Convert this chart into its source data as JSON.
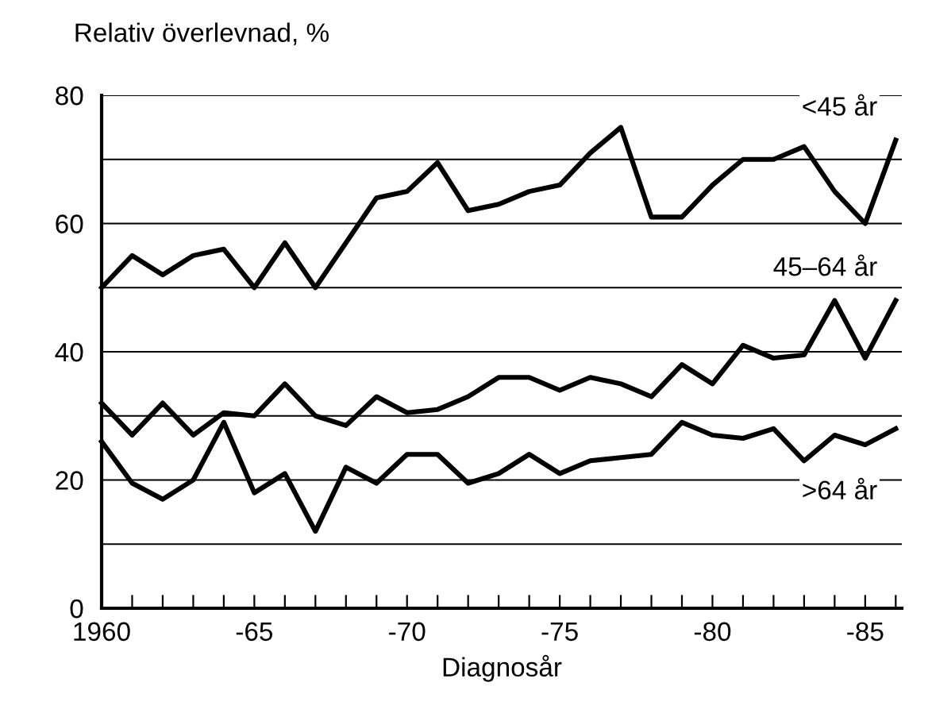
{
  "chart_data": {
    "type": "line",
    "ylabel": "Relativ överlevnad, %",
    "xlabel": "Diagnosår",
    "categories": [
      "1960",
      null,
      null,
      null,
      null,
      "-65",
      null,
      null,
      null,
      null,
      "-70",
      null,
      null,
      null,
      null,
      "-75",
      null,
      null,
      null,
      null,
      "-80",
      null,
      null,
      null,
      null,
      "-85",
      null
    ],
    "series": [
      {
        "name": "<45 år",
        "color": "#000000",
        "values": [
          50,
          55,
          52,
          55,
          56,
          50,
          57,
          50,
          57,
          64,
          65,
          69.5,
          62,
          63,
          65,
          66,
          71,
          75,
          61,
          61,
          66,
          70,
          70,
          72,
          65,
          60,
          73
        ]
      },
      {
        "name": "45–64 år",
        "color": "#000000",
        "values": [
          32,
          27,
          32,
          27,
          30.5,
          30,
          35,
          30,
          28.5,
          33,
          30.5,
          31,
          33,
          36,
          36,
          34,
          36,
          35,
          33,
          38,
          35,
          41,
          39,
          39.5,
          48,
          39,
          48
        ]
      },
      {
        "name": ">64 år",
        "color": "#000000",
        "values": [
          26,
          19.5,
          17,
          20,
          29,
          18,
          21,
          12,
          22,
          19.5,
          24,
          24,
          19.5,
          21,
          24,
          21,
          23,
          23.5,
          24,
          29,
          27,
          26.5,
          28,
          23,
          27,
          25.5,
          28
        ]
      }
    ],
    "ylim": [
      0,
      80
    ],
    "yticks": [
      0,
      {
        "value": 10,
        "label": null
      },
      20,
      {
        "value": 30,
        "label": null
      },
      40,
      {
        "value": 50,
        "label": null
      },
      60,
      {
        "value": 70,
        "label": null
      },
      80
    ],
    "grid": "y",
    "line_style": "solid",
    "marker": "none"
  }
}
